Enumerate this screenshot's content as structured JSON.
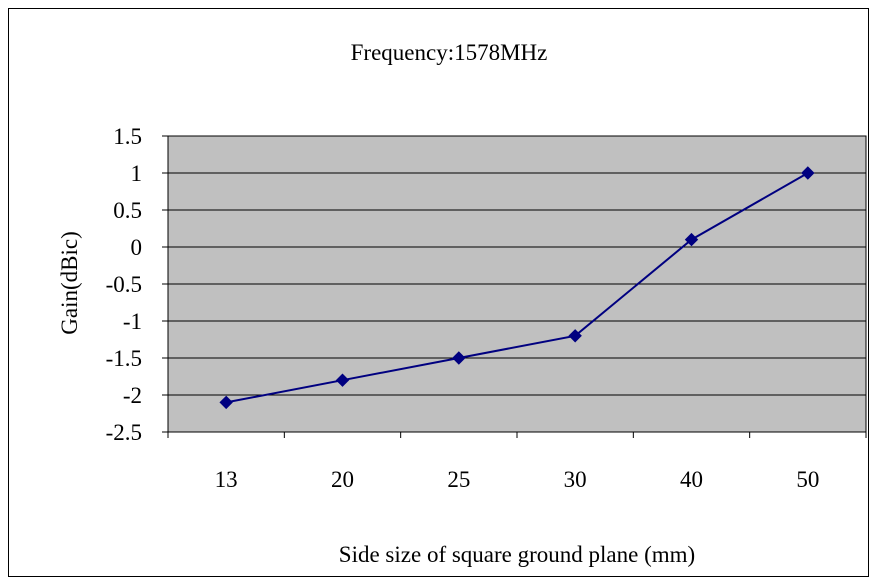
{
  "chart_data": {
    "type": "line",
    "title": "Frequency:1578MHz",
    "xlabel": "Side size of square ground plane (mm)",
    "ylabel": "Gain(dBic)",
    "categories": [
      "13",
      "20",
      "25",
      "30",
      "40",
      "50"
    ],
    "series": [
      {
        "values": [
          -2.1,
          -1.8,
          -1.5,
          -1.2,
          0.1,
          1.0
        ]
      }
    ],
    "ylim": [
      -2.5,
      1.5
    ],
    "yticks": [
      "1.5",
      "1",
      "0.5",
      "0",
      "-0.5",
      "-1",
      "-1.5",
      "-2",
      "-2.5"
    ],
    "ytick_values": [
      1.5,
      1,
      0.5,
      0,
      -0.5,
      -1,
      -1.5,
      -2,
      -2.5
    ],
    "grid": true,
    "legend": "none",
    "colors": {
      "plot_bg": "#c0c0c0",
      "line": "#000080",
      "marker": "#000080"
    }
  }
}
